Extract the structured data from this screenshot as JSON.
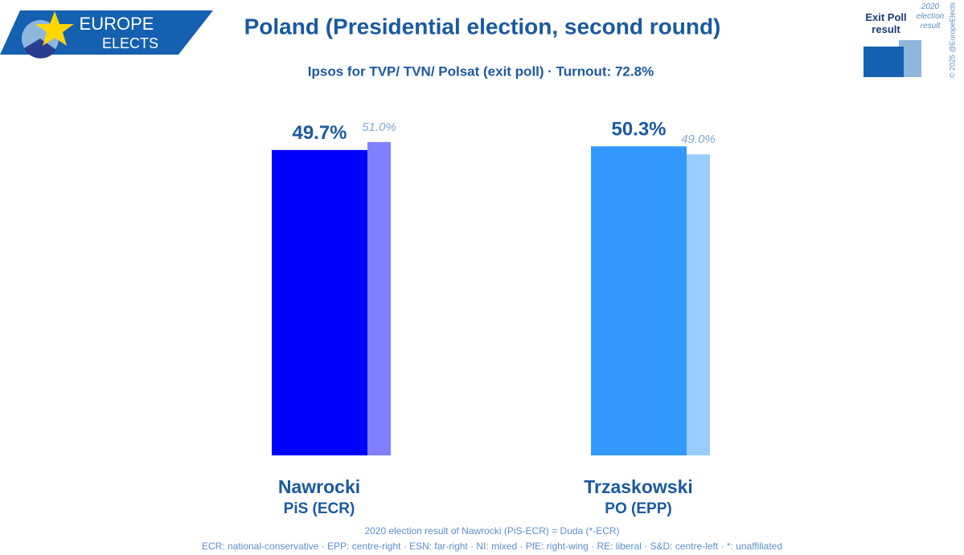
{
  "header": {
    "logo_top": "EUROPE",
    "logo_bottom": "ELECTS"
  },
  "chart_data": {
    "type": "bar",
    "title": "Poland (Presidential election, second round)",
    "subtitle": "Ipsos for TVP/ TVN/ Polsat (exit poll) · Turnout: 72.8%",
    "categories": [
      "Nawrocki",
      "Trzaskowski"
    ],
    "category_parties": [
      "PiS (ECR)",
      "PO (EPP)"
    ],
    "series": [
      {
        "name": "Exit Poll result",
        "legend_color": "#1560b0",
        "colors": [
          "#0000ff",
          "#3399ff"
        ],
        "values": [
          49.7,
          50.3
        ],
        "value_labels": [
          "49.7%",
          "50.3%"
        ]
      },
      {
        "name": "2020 election result",
        "legend_color": "#8fb6dd",
        "colors": [
          "#8080ff",
          "#99ccff"
        ],
        "values": [
          51.0,
          49.0
        ],
        "value_labels": [
          "51.0%",
          "49.0%"
        ]
      }
    ],
    "notes": [
      "2020 election result of Nawrocki (PiS-ECR) = Duda (*-ECR)",
      "ECR: national-conservative · EPP: centre-right · ESN: far-right · NI: mixed · PfE: right-wing · RE: liberal · S&D: centre-left · *: unaffiliated"
    ],
    "copyright": "© 2025 @EuropeElects"
  }
}
